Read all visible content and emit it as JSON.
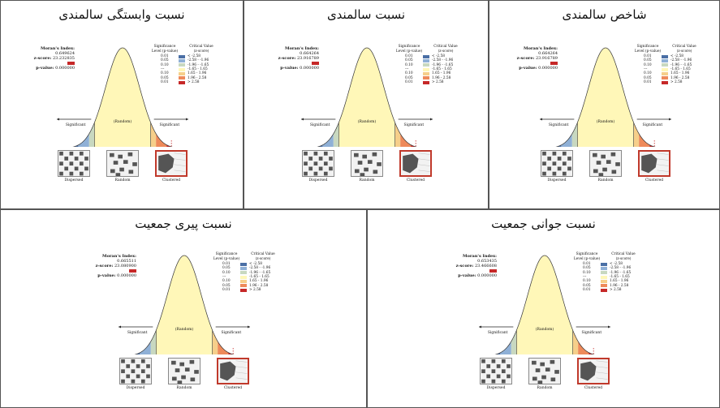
{
  "panels": [
    {
      "title": "نسبت وابستگی سالمندی",
      "moran": "0.649624",
      "z": "23.232835",
      "p": "0.000000"
    },
    {
      "title": "نسبت سالمندی",
      "moran": "0.664264",
      "z": "23.916789",
      "p": "0.000000"
    },
    {
      "title": "شاخص سالمندی",
      "moran": "0.664264",
      "z": "23.916789",
      "p": "0.000000"
    },
    {
      "title": "نسبت پیری جمعیت",
      "moran": "0.665511",
      "z": "23.080900",
      "p": "0.000000"
    },
    {
      "title": "نسبت جوانی جمعیت",
      "moran": "0.653435",
      "z": "23.466608",
      "p": "0.000000"
    }
  ],
  "labels": {
    "moran": "Moran's Index:",
    "z": "z-score:",
    "p": "p-value:",
    "sig_header": "Significance Level (p-value)",
    "crit_header": "Critical Value (z-score)",
    "significant": "Significant",
    "random": "(Random)",
    "dispersed": "Dispersed",
    "random_map": "Random",
    "clustered": "Clustered"
  },
  "legend": [
    {
      "p": "0.01",
      "z": "< -2.58",
      "color": "#4a6fa5"
    },
    {
      "p": "0.05",
      "z": "-2.58 - -1.96",
      "color": "#8fb0d6"
    },
    {
      "p": "0.10",
      "z": "-1.96 - -1.65",
      "color": "#c8d8c0"
    },
    {
      "p": "---",
      "z": "-1.65 - 1.65",
      "color": "#fff7b8"
    },
    {
      "p": "0.10",
      "z": "1.65 - 1.96",
      "color": "#f6cf8a"
    },
    {
      "p": "0.05",
      "z": "1.96 - 2.58",
      "color": "#ee8a5a"
    },
    {
      "p": "0.01",
      "z": "> 2.58",
      "color": "#c62828"
    }
  ]
}
